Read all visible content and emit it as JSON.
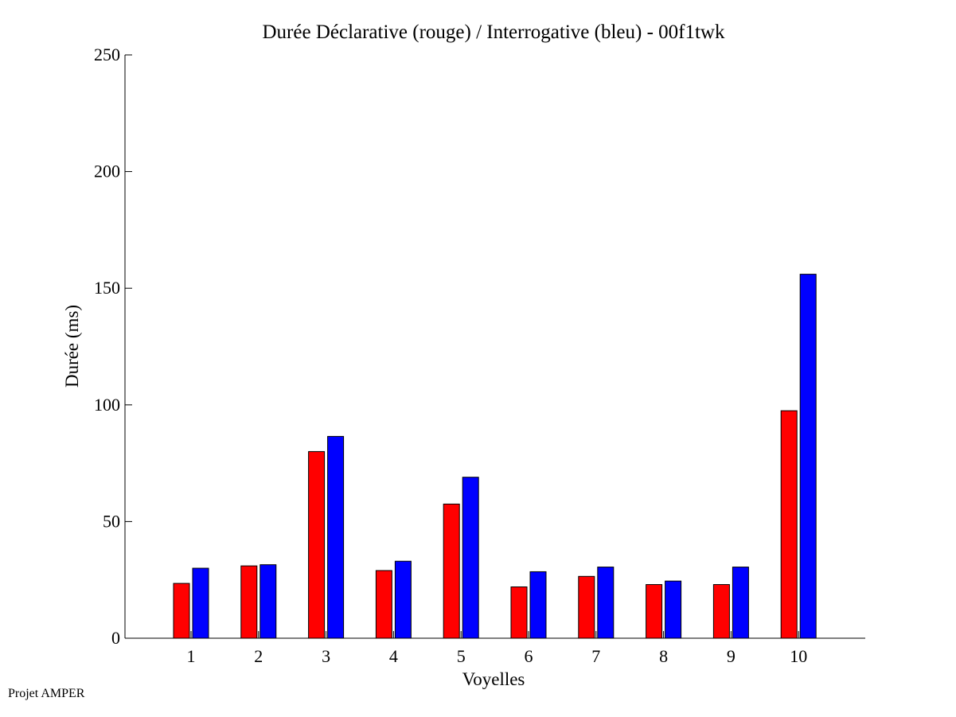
{
  "chart_data": {
    "type": "bar",
    "title": "Durée Déclarative (rouge) / Interrogative (bleu) - 00f1twk",
    "xlabel": "Voyelles",
    "ylabel": "Durée (ms)",
    "ylim": [
      0,
      250
    ],
    "yticks": [
      0,
      50,
      100,
      150,
      200,
      250
    ],
    "categories": [
      "1",
      "2",
      "3",
      "4",
      "5",
      "6",
      "7",
      "8",
      "9",
      "10"
    ],
    "grid": false,
    "series": [
      {
        "color": "#ff0000",
        "values": [
          23.5,
          31,
          80,
          29,
          57.5,
          22,
          26.5,
          23,
          23,
          97.5
        ]
      },
      {
        "color": "#0000ff",
        "values": [
          30,
          31.5,
          86.5,
          33,
          69,
          28.5,
          30.5,
          24.5,
          30.5,
          156
        ]
      }
    ]
  },
  "footer": "Projet AMPER"
}
